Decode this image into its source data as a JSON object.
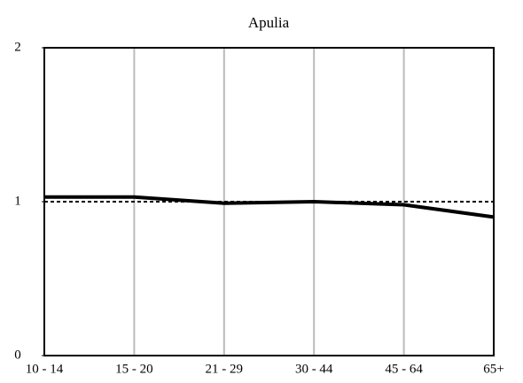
{
  "chart_data": {
    "type": "line",
    "title": "Apulia",
    "categories": [
      "10 - 14",
      "15 - 20",
      "21 - 29",
      "30 - 44",
      "45 - 64",
      "65+"
    ],
    "series": [
      {
        "color": "#000000",
        "values": [
          1.03,
          1.03,
          0.99,
          1.0,
          0.98,
          0.9
        ]
      }
    ],
    "reference_line": 1,
    "ylim": [
      0,
      2
    ],
    "yticks": [
      0,
      1,
      2
    ],
    "grid": true,
    "grid_color": "#bbbbbb"
  }
}
